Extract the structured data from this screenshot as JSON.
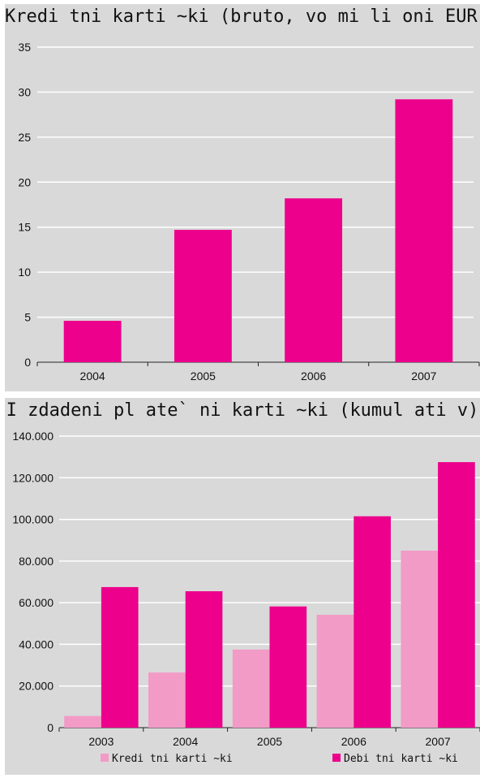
{
  "colors": {
    "background": "#d9d9d9",
    "credit": "#f29bc7",
    "debit": "#ec008c",
    "grid": "#ffffff"
  },
  "chart_data": [
    {
      "type": "bar",
      "title": "Kredi tni karti ~ki (bruto, vo mi li oni EUR)",
      "categories": [
        "2004",
        "2005",
        "2006",
        "2007"
      ],
      "values": [
        4.6,
        14.7,
        18.2,
        29.2
      ],
      "ylim": [
        0,
        35
      ],
      "yticks": [
        "0",
        "5",
        "10",
        "15",
        "20",
        "25",
        "30",
        "35"
      ],
      "grid": true
    },
    {
      "type": "bar",
      "title": "I zdadeni pl ate` ni karti ~ki (kumul ati v)",
      "categories": [
        "2003",
        "2004",
        "2005",
        "2006",
        "2007"
      ],
      "series": [
        {
          "name": "Kredi tni karti ~ki",
          "values": [
            5600,
            26500,
            37500,
            54200,
            85000
          ]
        },
        {
          "name": "Debi tni karti ~ki",
          "values": [
            67500,
            65500,
            58200,
            101500,
            127500
          ]
        }
      ],
      "ylim": [
        0,
        140000
      ],
      "yticks": [
        "0",
        "20.000",
        "40.000",
        "60.000",
        "80.000",
        "100.000",
        "120.000",
        "140.000"
      ],
      "grid": true,
      "legend": "bottom"
    }
  ]
}
